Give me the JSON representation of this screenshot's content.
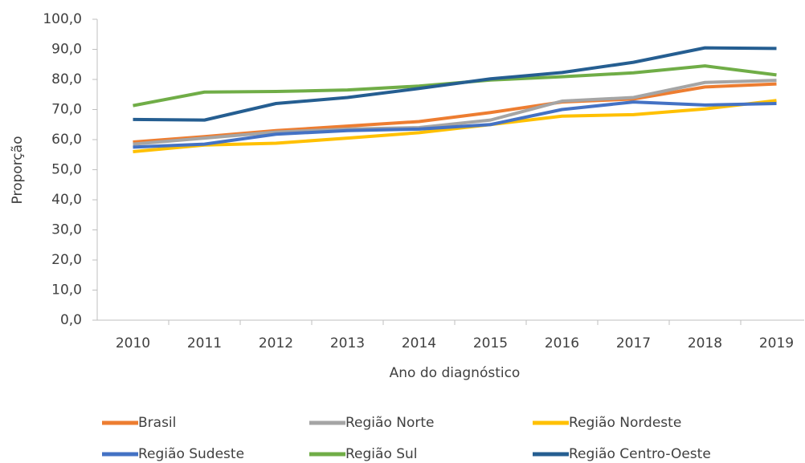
{
  "chart_data": {
    "type": "line",
    "y_label": "Proporção",
    "x_label": "Ano do diagnóstico",
    "categories": [
      "2010",
      "2011",
      "2012",
      "2013",
      "2014",
      "2015",
      "2016",
      "2017",
      "2018",
      "2019"
    ],
    "ylim": [
      0,
      100
    ],
    "yticks": [
      {
        "value": 0,
        "label": "0,0"
      },
      {
        "value": 10,
        "label": "10,0"
      },
      {
        "value": 20,
        "label": "20,0"
      },
      {
        "value": 30,
        "label": "30,0"
      },
      {
        "value": 40,
        "label": "40,0"
      },
      {
        "value": 50,
        "label": "50,0"
      },
      {
        "value": 60,
        "label": "60,0"
      },
      {
        "value": 70,
        "label": "70,0"
      },
      {
        "value": 80,
        "label": "80,0"
      },
      {
        "value": 90,
        "label": "90,0"
      },
      {
        "value": 100,
        "label": "100,0"
      }
    ],
    "grid": false,
    "legend": "bottom",
    "series": [
      {
        "name": "Brasil",
        "color": "#ed7d31",
        "values": [
          59.2,
          61,
          63,
          64.5,
          66,
          69,
          72.5,
          73.5,
          77.5,
          78.5
        ]
      },
      {
        "name": "Região Norte",
        "color": "#a5a5a5",
        "values": [
          58.5,
          60.5,
          62.5,
          63.5,
          64,
          66.5,
          72.8,
          74,
          79,
          79.7
        ]
      },
      {
        "name": "Região Nordeste",
        "color": "#ffc000",
        "values": [
          56,
          58.2,
          58.8,
          60.5,
          62.3,
          65,
          67.8,
          68.3,
          70.2,
          73
        ]
      },
      {
        "name": "Região Sudeste",
        "color": "#4472c4",
        "values": [
          57.5,
          58.5,
          61.8,
          63,
          63.5,
          65,
          70,
          72.5,
          71.5,
          72
        ]
      },
      {
        "name": "Região Sul",
        "color": "#70ad47",
        "values": [
          71.3,
          75.8,
          76,
          76.5,
          77.8,
          79.8,
          80.9,
          82.2,
          84.5,
          81.5
        ]
      },
      {
        "name": "Região Centro-Oeste",
        "color": "#255e91",
        "values": [
          66.7,
          66.5,
          72,
          74,
          77,
          80.2,
          82.3,
          85.7,
          90.5,
          90.3
        ]
      }
    ]
  }
}
